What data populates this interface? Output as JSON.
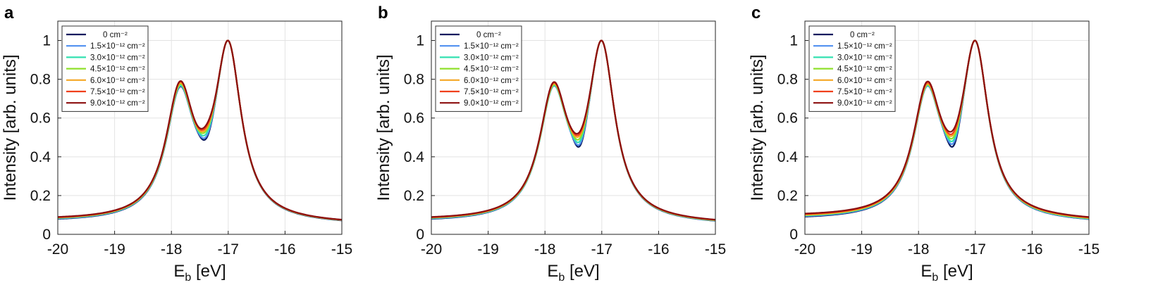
{
  "chart_data": [
    {
      "panel": "a",
      "type": "line",
      "xlabel_main": "E",
      "xlabel_sub": "b",
      "xlabel_unit": " [eV]",
      "ylabel": "Intensity [arb. units]",
      "xlim": [
        -20,
        -15
      ],
      "ylim": [
        0,
        1.1
      ],
      "xticks": [
        "-20",
        "-19",
        "-18",
        "-17",
        "-16",
        "-15"
      ],
      "yticks": [
        "0",
        "0.2",
        "0.4",
        "0.6",
        "0.8",
        "1"
      ],
      "series": [
        {
          "name": "0 cm⁻²",
          "color": "#0b1a5e",
          "valley": 0.5,
          "peak1": 0.762,
          "baseline_left": 0.06,
          "baseline_right": 0.048
        },
        {
          "name": "1.5×10⁻¹² cm⁻²",
          "color": "#4f8ff0",
          "valley": 0.51,
          "peak1": 0.765,
          "baseline_left": 0.062,
          "baseline_right": 0.049
        },
        {
          "name": "3.0×10⁻¹² cm⁻²",
          "color": "#33e0b0",
          "valley": 0.525,
          "peak1": 0.768,
          "baseline_left": 0.064,
          "baseline_right": 0.05
        },
        {
          "name": "4.5×10⁻¹² cm⁻²",
          "color": "#8fe02b",
          "valley": 0.54,
          "peak1": 0.775,
          "baseline_left": 0.066,
          "baseline_right": 0.05
        },
        {
          "name": "6.0×10⁻¹² cm⁻²",
          "color": "#f5a623",
          "valley": 0.55,
          "peak1": 0.78,
          "baseline_left": 0.067,
          "baseline_right": 0.051
        },
        {
          "name": "7.5×10⁻¹² cm⁻²",
          "color": "#f0401c",
          "valley": 0.56,
          "peak1": 0.787,
          "baseline_left": 0.068,
          "baseline_right": 0.051
        },
        {
          "name": "9.0×10⁻¹² cm⁻²",
          "color": "#8b0f0f",
          "valley": 0.57,
          "peak1": 0.79,
          "baseline_left": 0.07,
          "baseline_right": 0.052
        }
      ],
      "peaks_x": [
        -17.85,
        -17.0
      ],
      "peak2": 1.0
    },
    {
      "panel": "b",
      "type": "line",
      "xlabel_main": "E",
      "xlabel_sub": "b",
      "xlabel_unit": " [eV]",
      "ylabel": "Intensity [arb. units]",
      "xlim": [
        -20,
        -15
      ],
      "ylim": [
        0,
        1.1
      ],
      "xticks": [
        "-20",
        "-19",
        "-18",
        "-17",
        "-16",
        "-15"
      ],
      "yticks": [
        "0",
        "0.2",
        "0.4",
        "0.6",
        "0.8",
        "1"
      ],
      "series": [
        {
          "name": "0 cm⁻²",
          "color": "#0b1a5e",
          "valley": 0.46,
          "peak1": 0.77,
          "baseline_left": 0.06,
          "baseline_right": 0.046
        },
        {
          "name": "1.5×10⁻¹² cm⁻²",
          "color": "#4f8ff0",
          "valley": 0.47,
          "peak1": 0.765,
          "baseline_left": 0.062,
          "baseline_right": 0.047
        },
        {
          "name": "3.0×10⁻¹² cm⁻²",
          "color": "#33e0b0",
          "valley": 0.485,
          "peak1": 0.768,
          "baseline_left": 0.064,
          "baseline_right": 0.048
        },
        {
          "name": "4.5×10⁻¹² cm⁻²",
          "color": "#8fe02b",
          "valley": 0.5,
          "peak1": 0.772,
          "baseline_left": 0.066,
          "baseline_right": 0.049
        },
        {
          "name": "6.0×10⁻¹² cm⁻²",
          "color": "#f5a623",
          "valley": 0.515,
          "peak1": 0.777,
          "baseline_left": 0.067,
          "baseline_right": 0.05
        },
        {
          "name": "7.5×10⁻¹² cm⁻²",
          "color": "#f0401c",
          "valley": 0.525,
          "peak1": 0.782,
          "baseline_left": 0.068,
          "baseline_right": 0.051
        },
        {
          "name": "9.0×10⁻¹² cm⁻²",
          "color": "#8b0f0f",
          "valley": 0.535,
          "peak1": 0.785,
          "baseline_left": 0.07,
          "baseline_right": 0.052
        }
      ],
      "peaks_x": [
        -17.85,
        -17.0
      ],
      "peak2": 1.0
    },
    {
      "panel": "c",
      "type": "line",
      "xlabel_main": "E",
      "xlabel_sub": "b",
      "xlabel_unit": " [eV]",
      "ylabel": "Intensity [arb. units]",
      "xlim": [
        -20,
        -15
      ],
      "ylim": [
        0,
        1.1
      ],
      "xticks": [
        "-20",
        "-19",
        "-18",
        "-17",
        "-16",
        "-15"
      ],
      "yticks": [
        "0",
        "0.2",
        "0.4",
        "0.6",
        "0.8",
        "1"
      ],
      "series": [
        {
          "name": "0 cm⁻²",
          "color": "#0b1a5e",
          "valley": 0.46,
          "peak1": 0.765,
          "baseline_left": 0.072,
          "baseline_right": 0.055
        },
        {
          "name": "1.5×10⁻¹² cm⁻²",
          "color": "#4f8ff0",
          "valley": 0.475,
          "peak1": 0.765,
          "baseline_left": 0.075,
          "baseline_right": 0.056
        },
        {
          "name": "3.0×10⁻¹² cm⁻²",
          "color": "#33e0b0",
          "valley": 0.49,
          "peak1": 0.768,
          "baseline_left": 0.078,
          "baseline_right": 0.058
        },
        {
          "name": "4.5×10⁻¹² cm⁻²",
          "color": "#8fe02b",
          "valley": 0.505,
          "peak1": 0.772,
          "baseline_left": 0.08,
          "baseline_right": 0.06
        },
        {
          "name": "6.0×10⁻¹² cm⁻²",
          "color": "#f5a623",
          "valley": 0.52,
          "peak1": 0.776,
          "baseline_left": 0.082,
          "baseline_right": 0.062
        },
        {
          "name": "7.5×10⁻¹² cm⁻²",
          "color": "#f0401c",
          "valley": 0.53,
          "peak1": 0.782,
          "baseline_left": 0.085,
          "baseline_right": 0.064
        },
        {
          "name": "9.0×10⁻¹² cm⁻²",
          "color": "#8b0f0f",
          "valley": 0.545,
          "peak1": 0.788,
          "baseline_left": 0.088,
          "baseline_right": 0.066
        }
      ],
      "peaks_x": [
        -17.85,
        -17.0
      ],
      "peak2": 1.0
    }
  ]
}
